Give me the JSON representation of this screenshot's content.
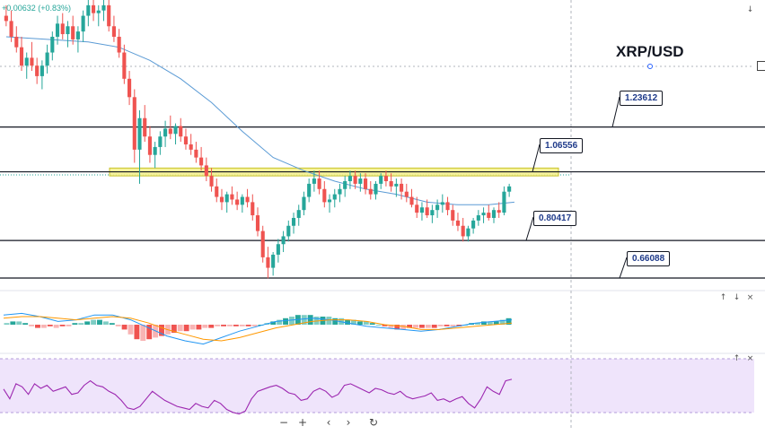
{
  "header": {
    "symbol": "XRP/USD",
    "change": "+0.00632 (+0.83%)"
  },
  "levels": [
    {
      "value": 1.23612,
      "label": "1.23612"
    },
    {
      "value": 1.06556,
      "label": "1.06556"
    },
    {
      "value": 0.80417,
      "label": "0.80417"
    },
    {
      "value": 0.66088,
      "label": "0.66088"
    }
  ],
  "chart_data": [
    {
      "type": "candlestick",
      "title": "XRP/USD",
      "ylim": [
        0.62,
        1.72
      ],
      "supply_zone": [
        1.05,
        1.08
      ],
      "candles": [
        [
          1.66,
          1.7,
          1.62,
          1.64
        ],
        [
          1.64,
          1.68,
          1.56,
          1.58
        ],
        [
          1.58,
          1.62,
          1.52,
          1.54
        ],
        [
          1.54,
          1.58,
          1.45,
          1.47
        ],
        [
          1.47,
          1.52,
          1.42,
          1.5
        ],
        [
          1.5,
          1.56,
          1.45,
          1.47
        ],
        [
          1.47,
          1.5,
          1.4,
          1.43
        ],
        [
          1.43,
          1.49,
          1.38,
          1.47
        ],
        [
          1.47,
          1.55,
          1.44,
          1.52
        ],
        [
          1.52,
          1.6,
          1.49,
          1.58
        ],
        [
          1.58,
          1.66,
          1.55,
          1.63
        ],
        [
          1.63,
          1.67,
          1.57,
          1.59
        ],
        [
          1.59,
          1.64,
          1.54,
          1.62
        ],
        [
          1.62,
          1.66,
          1.55,
          1.57
        ],
        [
          1.57,
          1.62,
          1.52,
          1.6
        ],
        [
          1.6,
          1.68,
          1.56,
          1.66
        ],
        [
          1.66,
          1.72,
          1.62,
          1.7
        ],
        [
          1.7,
          1.72,
          1.64,
          1.67
        ],
        [
          1.67,
          1.7,
          1.62,
          1.68
        ],
        [
          1.68,
          1.72,
          1.64,
          1.7
        ],
        [
          1.7,
          1.72,
          1.6,
          1.62
        ],
        [
          1.62,
          1.66,
          1.56,
          1.58
        ],
        [
          1.58,
          1.61,
          1.5,
          1.52
        ],
        [
          1.52,
          1.55,
          1.4,
          1.42
        ],
        [
          1.42,
          1.45,
          1.32,
          1.35
        ],
        [
          1.35,
          1.38,
          1.1,
          1.15
        ],
        [
          1.15,
          1.3,
          1.02,
          1.27
        ],
        [
          1.27,
          1.32,
          1.18,
          1.2
        ],
        [
          1.2,
          1.24,
          1.1,
          1.13
        ],
        [
          1.13,
          1.18,
          1.08,
          1.16
        ],
        [
          1.16,
          1.22,
          1.13,
          1.2
        ],
        [
          1.2,
          1.26,
          1.16,
          1.23
        ],
        [
          1.23,
          1.28,
          1.19,
          1.21
        ],
        [
          1.21,
          1.25,
          1.17,
          1.24
        ],
        [
          1.24,
          1.27,
          1.18,
          1.2
        ],
        [
          1.2,
          1.23,
          1.15,
          1.17
        ],
        [
          1.17,
          1.21,
          1.13,
          1.15
        ],
        [
          1.15,
          1.18,
          1.1,
          1.12
        ],
        [
          1.12,
          1.16,
          1.07,
          1.09
        ],
        [
          1.09,
          1.12,
          1.03,
          1.05
        ],
        [
          1.05,
          1.08,
          0.99,
          1.01
        ],
        [
          1.01,
          1.04,
          0.95,
          0.97
        ],
        [
          0.97,
          1.0,
          0.92,
          0.95
        ],
        [
          0.95,
          0.99,
          0.91,
          0.98
        ],
        [
          0.98,
          1.01,
          0.94,
          0.96
        ],
        [
          0.96,
          0.99,
          0.92,
          0.94
        ],
        [
          0.94,
          0.98,
          0.91,
          0.97
        ],
        [
          0.97,
          1.0,
          0.93,
          0.95
        ],
        [
          0.95,
          0.98,
          0.88,
          0.9
        ],
        [
          0.9,
          0.93,
          0.82,
          0.84
        ],
        [
          0.84,
          0.86,
          0.72,
          0.74
        ],
        [
          0.74,
          0.78,
          0.66,
          0.7
        ],
        [
          0.7,
          0.76,
          0.67,
          0.75
        ],
        [
          0.75,
          0.81,
          0.72,
          0.79
        ],
        [
          0.79,
          0.84,
          0.76,
          0.82
        ],
        [
          0.82,
          0.88,
          0.8,
          0.86
        ],
        [
          0.86,
          0.91,
          0.83,
          0.89
        ],
        [
          0.89,
          0.94,
          0.86,
          0.92
        ],
        [
          0.92,
          0.99,
          0.9,
          0.97
        ],
        [
          0.97,
          1.04,
          0.95,
          1.02
        ],
        [
          1.02,
          1.07,
          0.99,
          1.04
        ],
        [
          1.04,
          1.07,
          0.98,
          1.0
        ],
        [
          1.0,
          1.03,
          0.93,
          0.95
        ],
        [
          0.95,
          0.98,
          0.91,
          0.96
        ],
        [
          0.96,
          1.0,
          0.93,
          0.98
        ],
        [
          0.98,
          1.02,
          0.95,
          1.0
        ],
        [
          1.0,
          1.05,
          0.97,
          1.03
        ],
        [
          1.03,
          1.07,
          1.0,
          1.05
        ],
        [
          1.05,
          1.07,
          1.0,
          1.02
        ],
        [
          1.02,
          1.06,
          0.99,
          1.04
        ],
        [
          1.04,
          1.06,
          0.98,
          1.0
        ],
        [
          1.0,
          1.03,
          0.96,
          0.98
        ],
        [
          0.98,
          1.03,
          0.96,
          1.02
        ],
        [
          1.02,
          1.06,
          1.0,
          1.05
        ],
        [
          1.05,
          1.07,
          1.01,
          1.03
        ],
        [
          1.03,
          1.06,
          0.99,
          1.01
        ],
        [
          1.01,
          1.04,
          0.97,
          1.02
        ],
        [
          1.02,
          1.04,
          0.96,
          0.99
        ],
        [
          0.99,
          1.02,
          0.95,
          0.97
        ],
        [
          0.97,
          1.0,
          0.93,
          0.94
        ],
        [
          0.94,
          0.97,
          0.89,
          0.91
        ],
        [
          0.91,
          0.95,
          0.88,
          0.93
        ],
        [
          0.93,
          0.96,
          0.89,
          0.9
        ],
        [
          0.9,
          0.94,
          0.87,
          0.92
        ],
        [
          0.92,
          0.96,
          0.89,
          0.94
        ],
        [
          0.94,
          0.98,
          0.91,
          0.95
        ],
        [
          0.95,
          0.97,
          0.9,
          0.92
        ],
        [
          0.92,
          0.94,
          0.86,
          0.88
        ],
        [
          0.88,
          0.91,
          0.84,
          0.86
        ],
        [
          0.86,
          0.89,
          0.8,
          0.82
        ],
        [
          0.82,
          0.86,
          0.8,
          0.85
        ],
        [
          0.85,
          0.89,
          0.83,
          0.88
        ],
        [
          0.88,
          0.92,
          0.86,
          0.9
        ],
        [
          0.9,
          0.93,
          0.87,
          0.91
        ],
        [
          0.91,
          0.94,
          0.88,
          0.89
        ],
        [
          0.89,
          0.93,
          0.87,
          0.92
        ],
        [
          0.92,
          0.95,
          0.89,
          0.91
        ],
        [
          0.91,
          1.01,
          0.9,
          0.99
        ],
        [
          0.99,
          1.02,
          0.97,
          1.01
        ]
      ],
      "moving_average": [
        [
          0,
          1.58
        ],
        [
          8,
          1.57
        ],
        [
          16,
          1.56
        ],
        [
          22,
          1.54
        ],
        [
          28,
          1.49
        ],
        [
          34,
          1.42
        ],
        [
          40,
          1.33
        ],
        [
          46,
          1.22
        ],
        [
          52,
          1.12
        ],
        [
          58,
          1.07
        ],
        [
          64,
          1.03
        ],
        [
          70,
          1.0
        ],
        [
          76,
          0.98
        ],
        [
          82,
          0.95
        ],
        [
          88,
          0.94
        ],
        [
          94,
          0.94
        ],
        [
          99,
          0.95
        ]
      ]
    },
    {
      "type": "macd",
      "histogram": [
        0.01,
        0.02,
        0.02,
        0.01,
        -0.01,
        -0.02,
        -0.02,
        -0.01,
        -0.02,
        -0.01,
        -0.01,
        0.01,
        0.01,
        0.02,
        0.03,
        0.03,
        0.02,
        0.01,
        -0.01,
        -0.03,
        -0.06,
        -0.09,
        -0.1,
        -0.09,
        -0.08,
        -0.07,
        -0.06,
        -0.05,
        -0.04,
        -0.04,
        -0.03,
        -0.03,
        -0.02,
        -0.02,
        -0.01,
        -0.01,
        -0.01,
        -0.01,
        -0.01,
        -0.01,
        -0.01,
        0.0,
        0.01,
        0.02,
        0.03,
        0.04,
        0.05,
        0.06,
        0.06,
        0.06,
        0.05,
        0.05,
        0.05,
        0.04,
        0.04,
        0.03,
        0.03,
        0.02,
        0.02,
        0.01,
        0.0,
        -0.01,
        -0.02,
        -0.03,
        -0.03,
        -0.02,
        -0.02,
        -0.02,
        -0.02,
        -0.02,
        -0.01,
        -0.01,
        -0.01,
        -0.01,
        0.0,
        0.01,
        0.01,
        0.02,
        0.02,
        0.02,
        0.03,
        0.04
      ],
      "macd_line": [
        0.06,
        0.07,
        0.05,
        0.02,
        0.03,
        0.06,
        0.06,
        0.03,
        -0.02,
        -0.07,
        -0.1,
        -0.12,
        -0.08,
        -0.04,
        -0.01,
        0.02,
        0.03,
        0.04,
        0.03,
        0.01,
        -0.01,
        -0.02,
        -0.03,
        -0.04,
        -0.03,
        -0.01,
        0.01,
        0.02,
        0.03
      ],
      "signal_line": [
        0.04,
        0.05,
        0.05,
        0.04,
        0.03,
        0.04,
        0.05,
        0.04,
        0.01,
        -0.03,
        -0.06,
        -0.09,
        -0.1,
        -0.08,
        -0.05,
        -0.02,
        0.0,
        0.02,
        0.03,
        0.03,
        0.02,
        0.0,
        -0.01,
        -0.03,
        -0.03,
        -0.02,
        -0.01,
        0.0,
        0.01
      ]
    },
    {
      "type": "rsi",
      "values": [
        55,
        42,
        62,
        58,
        48,
        62,
        56,
        60,
        52,
        55,
        58,
        48,
        50,
        60,
        66,
        60,
        58,
        52,
        48,
        40,
        30,
        28,
        32,
        42,
        52,
        46,
        40,
        36,
        32,
        30,
        28,
        36,
        32,
        30,
        40,
        36,
        28,
        24,
        22,
        26,
        42,
        52,
        55,
        58,
        60,
        56,
        50,
        48,
        40,
        42,
        52,
        56,
        52,
        44,
        48,
        60,
        62,
        58,
        54,
        50,
        56,
        54,
        50,
        48,
        52,
        45,
        42,
        44,
        46,
        50,
        40,
        42,
        38,
        42,
        45,
        36,
        30,
        42,
        58,
        52,
        48,
        66,
        68
      ],
      "ylim": [
        0,
        100
      ]
    }
  ]
}
